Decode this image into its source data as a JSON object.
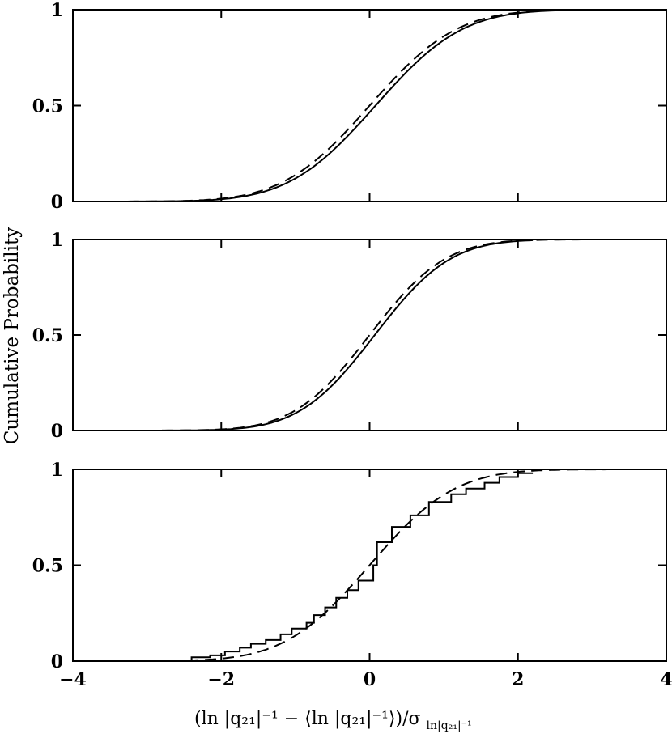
{
  "chart_data": {
    "type": "line",
    "ylabel": "Cumulative Probability",
    "xlabel": "(ln |q₂₁|⁻¹ − ⟨ln |q₂₁|⁻¹⟩)/σ",
    "xlabel_subscript": "ln|q₂₁|⁻¹",
    "xlim": [
      -4,
      4
    ],
    "x_ticks": [
      "−4",
      "−2",
      "0",
      "2",
      "4"
    ],
    "y_ticks": [
      "0",
      "0.5",
      "1"
    ],
    "panels": [
      {
        "ylim": [
          0,
          1
        ],
        "series": [
          {
            "style": "solid",
            "mean": 0.08,
            "sd": 0.92,
            "x_start": -3.5,
            "x_end": 2.5
          },
          {
            "style": "dashed",
            "mean": 0.0,
            "sd": 0.92,
            "x_start": -3.5,
            "x_end": 4.0
          }
        ]
      },
      {
        "ylim": [
          0,
          1
        ],
        "series": [
          {
            "style": "solid",
            "mean": 0.07,
            "sd": 0.8,
            "x_start": -4.0,
            "x_end": 2.2
          },
          {
            "style": "dashed",
            "mean": 0.0,
            "sd": 0.8,
            "x_start": -4.0,
            "x_end": 4.0
          }
        ]
      },
      {
        "ylim": [
          0,
          1
        ],
        "series": [
          {
            "style": "step",
            "x": [
              -2.75,
              -2.4,
              -2.15,
              -1.95,
              -1.75,
              -1.6,
              -1.4,
              -1.2,
              -1.05,
              -0.85,
              -0.75,
              -0.6,
              -0.45,
              -0.3,
              -0.15,
              0.05,
              0.1,
              0.3,
              0.55,
              0.8,
              1.1,
              1.3,
              1.55,
              1.75,
              2.0
            ],
            "y": [
              0.0,
              0.02,
              0.03,
              0.05,
              0.07,
              0.09,
              0.11,
              0.14,
              0.17,
              0.2,
              0.24,
              0.28,
              0.33,
              0.37,
              0.42,
              0.5,
              0.62,
              0.7,
              0.76,
              0.83,
              0.87,
              0.9,
              0.93,
              0.96,
              0.98
            ]
          },
          {
            "style": "dashed",
            "mean": 0.0,
            "sd": 0.9,
            "x_start": -2.7,
            "x_end": 4.0
          }
        ]
      }
    ]
  }
}
